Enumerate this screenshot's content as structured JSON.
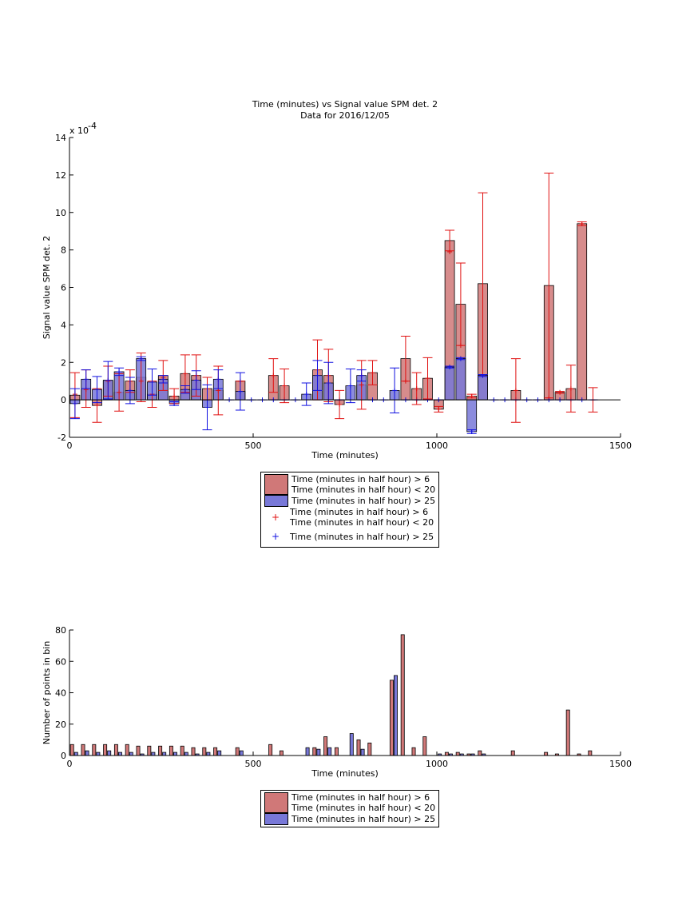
{
  "chart_data": [
    {
      "type": "bar",
      "title": "Time (minutes) vs Signal value SPM det. 2",
      "subtitle": "Data for 2016/12/05",
      "xlabel": "Time (minutes)",
      "ylabel": "Signal value SPM det. 2",
      "y_multiplier": "x 10",
      "y_multiplier_exponent": "-4",
      "xlim": [
        0,
        1500
      ],
      "xticks": [
        0,
        500,
        1000,
        1500
      ],
      "ylim": [
        -2,
        14
      ],
      "yticks": [
        -2,
        0,
        2,
        4,
        6,
        8,
        10,
        12,
        14
      ],
      "x": [
        15,
        45,
        75,
        105,
        135,
        165,
        195,
        225,
        255,
        285,
        315,
        345,
        375,
        405,
        435,
        465,
        495,
        525,
        555,
        585,
        615,
        645,
        675,
        705,
        735,
        765,
        795,
        825,
        855,
        885,
        915,
        945,
        975,
        1005,
        1035,
        1065,
        1095,
        1125,
        1155,
        1185,
        1215,
        1245,
        1275,
        1305,
        1335,
        1365,
        1395,
        1425
      ],
      "series": [
        {
          "name": "Time (minutes in half hour) > 6\nTime (minutes in half hour) < 20",
          "style": "bar",
          "color": "#d07878",
          "values": [
            0.25,
            0.6,
            -0.3,
            1.0,
            0.4,
            1.0,
            1.2,
            0.3,
            1.3,
            0.2,
            1.4,
            1.3,
            0.6,
            0.5,
            null,
            1.0,
            null,
            null,
            1.3,
            0.75,
            null,
            null,
            1.6,
            1.3,
            -0.25,
            null,
            0.8,
            1.45,
            null,
            null,
            2.2,
            0.6,
            1.15,
            -0.5,
            8.5,
            5.1,
            0.2,
            6.2,
            null,
            null,
            0.5,
            null,
            null,
            6.1,
            0.4,
            0.6,
            9.4,
            0
          ],
          "errors": [
            1.2,
            1.0,
            0.9,
            0.8,
            1.0,
            0.6,
            1.3,
            0.7,
            0.8,
            0.4,
            1.0,
            1.1,
            0.6,
            1.3,
            null,
            0,
            null,
            null,
            0.9,
            0.9,
            null,
            null,
            1.6,
            1.4,
            0.75,
            null,
            1.3,
            0.65,
            null,
            null,
            1.2,
            0.85,
            1.1,
            0.15,
            0.55,
            2.2,
            0.1,
            4.85,
            null,
            null,
            1.7,
            null,
            null,
            6.0,
            0.05,
            1.25,
            0.1,
            0.65
          ]
        },
        {
          "name": "Time (minutes in half hour) > 25",
          "style": "bar",
          "color": "#7878d8",
          "values": [
            -0.2,
            1.1,
            0.55,
            1.05,
            1.5,
            0.5,
            2.2,
            0.95,
            1.1,
            -0.2,
            0.55,
            1.05,
            -0.4,
            1.1,
            0,
            0.45,
            0,
            0,
            0,
            0,
            0,
            0.3,
            1.3,
            0.9,
            0,
            0.75,
            1.3,
            0,
            0,
            0.5,
            0,
            0,
            0,
            0,
            1.75,
            2.2,
            -1.7,
            1.3,
            0,
            0,
            0,
            0,
            0,
            0,
            0,
            0,
            0,
            0
          ],
          "errors": [
            0.8,
            0.5,
            0.7,
            1.0,
            0.2,
            0.7,
            0.1,
            0.7,
            0.2,
            0.1,
            0.2,
            0.5,
            1.2,
            0.5,
            0,
            1.0,
            0,
            0,
            0,
            0,
            0,
            0.6,
            0.8,
            1.1,
            0,
            0.9,
            0.3,
            0,
            0,
            1.2,
            0,
            0,
            0,
            0,
            0.05,
            0.05,
            0.1,
            0.05,
            0,
            0,
            0,
            0,
            0,
            0,
            0,
            0,
            0,
            0
          ]
        },
        {
          "name": "Time (minutes in half hour) > 6\nTime (minutes in half hour) < 20",
          "style": "marker",
          "color": "#e01010",
          "values": [
            0.3,
            0.55,
            -0.3,
            1.0,
            0.4,
            1.0,
            1.0,
            0.3,
            1.2,
            0.2,
            1.4,
            1.3,
            0.6,
            0.5,
            null,
            1.0,
            null,
            null,
            1.3,
            0.75,
            null,
            null,
            1.6,
            1.3,
            -0.25,
            null,
            0.8,
            1.45,
            null,
            null,
            1.0,
            0.6,
            1.15,
            -0.5,
            7.9,
            2.9,
            0.2,
            1.3,
            null,
            null,
            0.5,
            null,
            null,
            0.1,
            0.4,
            0.6,
            9.4,
            0
          ]
        },
        {
          "name": "Time (minutes in half hour) > 25",
          "style": "marker",
          "color": "#1010e0",
          "values": [
            -0.2,
            1.1,
            0.55,
            1.05,
            1.5,
            0.5,
            2.2,
            0.95,
            1.1,
            -0.2,
            0.55,
            1.05,
            -0.4,
            1.1,
            0,
            0.45,
            0,
            0,
            0,
            0,
            0,
            0.3,
            1.3,
            0.9,
            0,
            0.75,
            1.3,
            0,
            0,
            0.5,
            0,
            0,
            0,
            0,
            1.75,
            2.2,
            -1.7,
            1.3,
            0,
            0,
            0,
            0,
            0,
            0,
            0,
            0,
            0,
            0
          ]
        }
      ]
    },
    {
      "type": "bar",
      "xlabel": "Time (minutes)",
      "ylabel": "Number of points in bin",
      "xlim": [
        0,
        1500
      ],
      "xticks": [
        0,
        500,
        1000,
        1500
      ],
      "ylim": [
        0,
        80
      ],
      "yticks": [
        0,
        20,
        40,
        60,
        80
      ],
      "x": [
        15,
        45,
        75,
        105,
        135,
        165,
        195,
        225,
        255,
        285,
        315,
        345,
        375,
        405,
        435,
        465,
        495,
        525,
        555,
        585,
        615,
        645,
        675,
        705,
        735,
        765,
        795,
        825,
        855,
        885,
        915,
        945,
        975,
        1005,
        1035,
        1065,
        1095,
        1125,
        1155,
        1185,
        1215,
        1245,
        1275,
        1305,
        1335,
        1365,
        1395,
        1425
      ],
      "series": [
        {
          "name": "Time (minutes in half hour) > 6\nTime (minutes in half hour) < 20",
          "style": "bar",
          "color": "#d07878",
          "values": [
            7,
            7,
            7,
            7,
            7,
            7,
            6,
            6,
            6,
            6,
            6,
            5,
            5,
            5,
            0,
            5,
            0,
            0,
            7,
            3,
            0,
            0,
            5,
            12,
            5,
            0,
            10,
            8,
            0,
            48,
            77,
            5,
            12,
            0,
            2,
            2,
            1,
            3,
            0,
            0,
            3,
            0,
            0,
            2,
            1,
            29,
            1,
            3
          ]
        },
        {
          "name": "Time (minutes in half hour) > 25",
          "style": "bar",
          "color": "#7878d8",
          "values": [
            2,
            3,
            2,
            3,
            2,
            2,
            1,
            2,
            2,
            2,
            2,
            1,
            2,
            3,
            0,
            3,
            0,
            0,
            0,
            0,
            0,
            5,
            4,
            5,
            0,
            14,
            4,
            0,
            0,
            51,
            0,
            0,
            0,
            1,
            1,
            1,
            1,
            1,
            0,
            0,
            0,
            0,
            0,
            0,
            0,
            0,
            0,
            0
          ]
        }
      ]
    }
  ]
}
